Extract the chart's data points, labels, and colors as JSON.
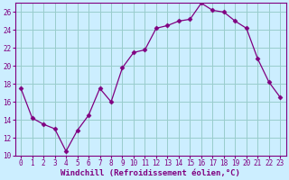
{
  "x": [
    0,
    1,
    2,
    3,
    4,
    5,
    6,
    7,
    8,
    9,
    10,
    11,
    12,
    13,
    14,
    15,
    16,
    17,
    18,
    19,
    20,
    21,
    22,
    23
  ],
  "y": [
    17.5,
    14.2,
    13.5,
    13.0,
    10.5,
    12.8,
    14.5,
    17.5,
    16.0,
    19.8,
    21.5,
    21.8,
    24.2,
    24.5,
    25.0,
    25.2,
    27.0,
    26.2,
    26.0,
    25.0,
    24.2,
    20.8,
    18.2,
    16.5
  ],
  "line_color": "#800080",
  "marker": "D",
  "marker_size": 2.5,
  "bg_color": "#cceeff",
  "grid_color": "#99cccc",
  "xlabel": "Windchill (Refroidissement éolien,°C)",
  "xlabel_color": "#800080",
  "tick_color": "#800080",
  "spine_color": "#800080",
  "ylim": [
    10,
    27
  ],
  "xlim": [
    -0.5,
    23.5
  ],
  "yticks": [
    10,
    12,
    14,
    16,
    18,
    20,
    22,
    24,
    26
  ],
  "xticks": [
    0,
    1,
    2,
    3,
    4,
    5,
    6,
    7,
    8,
    9,
    10,
    11,
    12,
    13,
    14,
    15,
    16,
    17,
    18,
    19,
    20,
    21,
    22,
    23
  ],
  "font_family": "monospace",
  "tick_fontsize": 5.5,
  "xlabel_fontsize": 6.5
}
